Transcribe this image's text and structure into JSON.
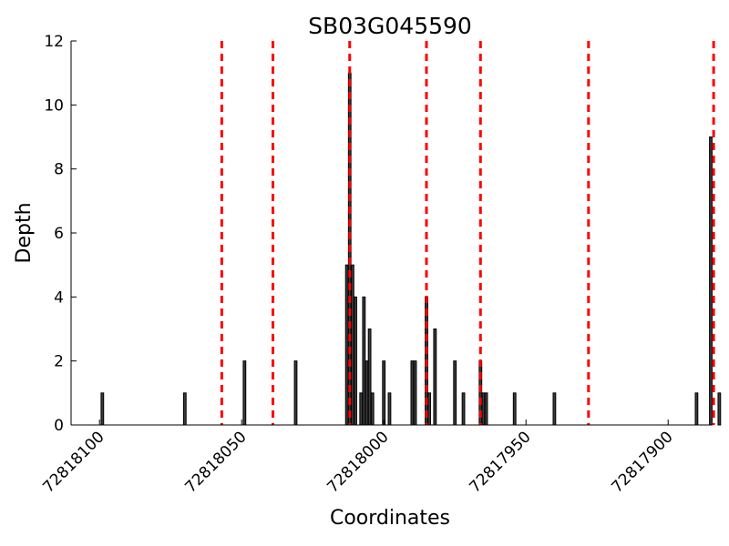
{
  "chart_data": {
    "type": "bar",
    "title": "SB03G045590",
    "xlabel": "Coordinates",
    "ylabel": "Depth",
    "x_reversed": true,
    "xlim": [
      72818110,
      72817885
    ],
    "ylim": [
      0,
      12
    ],
    "xticks": [
      72818100,
      72818050,
      72818000,
      72817950,
      72817900
    ],
    "yticks": [
      0,
      2,
      4,
      6,
      8,
      10,
      12
    ],
    "grid": false,
    "bar_color": "#3a3a3a",
    "bar_edge_color": "#000000",
    "marker_line_color": "#ff0000",
    "marker_lines_x": [
      72818057,
      72818039,
      72818012,
      72817985,
      72817966,
      72817928,
      72817884
    ],
    "bars": [
      {
        "x": 72818099,
        "y": 1
      },
      {
        "x": 72818070,
        "y": 1
      },
      {
        "x": 72818049,
        "y": 2
      },
      {
        "x": 72818031,
        "y": 2
      },
      {
        "x": 72818013,
        "y": 5
      },
      {
        "x": 72818012,
        "y": 11
      },
      {
        "x": 72818011,
        "y": 5
      },
      {
        "x": 72818010,
        "y": 4
      },
      {
        "x": 72818008,
        "y": 1
      },
      {
        "x": 72818007,
        "y": 4
      },
      {
        "x": 72818006,
        "y": 2
      },
      {
        "x": 72818005,
        "y": 3
      },
      {
        "x": 72818004,
        "y": 1
      },
      {
        "x": 72818000,
        "y": 2
      },
      {
        "x": 72817998,
        "y": 1
      },
      {
        "x": 72817990,
        "y": 2
      },
      {
        "x": 72817989,
        "y": 2
      },
      {
        "x": 72817985,
        "y": 4
      },
      {
        "x": 72817984,
        "y": 1
      },
      {
        "x": 72817982,
        "y": 3
      },
      {
        "x": 72817975,
        "y": 2
      },
      {
        "x": 72817972,
        "y": 1
      },
      {
        "x": 72817966,
        "y": 2
      },
      {
        "x": 72817965,
        "y": 1
      },
      {
        "x": 72817964,
        "y": 1
      },
      {
        "x": 72817954,
        "y": 1
      },
      {
        "x": 72817940,
        "y": 1
      },
      {
        "x": 72817890,
        "y": 1
      },
      {
        "x": 72817885,
        "y": 9
      },
      {
        "x": 72817882,
        "y": 1
      }
    ]
  }
}
